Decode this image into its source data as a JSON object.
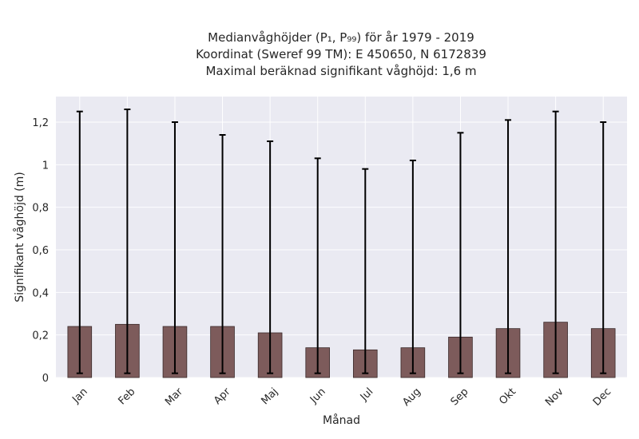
{
  "chart_data": {
    "type": "bar",
    "title_lines": [
      "Medianvåghöjder (P₁, P₉₉) för år 1979 - 2019",
      "Koordinat (Sweref 99 TM): E 450650, N 6172839",
      "Maximal beräknad signifikant våghöjd: 1,6 m"
    ],
    "xlabel": "Månad",
    "ylabel": "Signifikant våghöjd (m)",
    "categories": [
      "Jan",
      "Feb",
      "Mar",
      "Apr",
      "Maj",
      "Jun",
      "Jul",
      "Aug",
      "Sep",
      "Okt",
      "Nov",
      "Dec"
    ],
    "values": [
      0.24,
      0.25,
      0.24,
      0.24,
      0.21,
      0.14,
      0.13,
      0.14,
      0.19,
      0.23,
      0.26,
      0.23
    ],
    "p1": [
      0.02,
      0.02,
      0.02,
      0.02,
      0.02,
      0.02,
      0.02,
      0.02,
      0.02,
      0.02,
      0.02,
      0.02
    ],
    "p99": [
      1.25,
      1.26,
      1.2,
      1.14,
      1.11,
      1.03,
      0.98,
      1.02,
      1.15,
      1.21,
      1.25,
      1.2
    ],
    "ylim": [
      0,
      1.32
    ],
    "yticks": [
      0,
      0.2,
      0.4,
      0.6,
      0.8,
      1,
      1.2
    ],
    "ytick_labels": [
      "0",
      "0,2",
      "0,4",
      "0,6",
      "0,8",
      "1",
      "1,2"
    ],
    "grid": true,
    "colors": {
      "bar": "#7d5b5b",
      "bar_edge": "#3a2a2a",
      "errorbar": "#000000",
      "plot_bg": "#eaeaf2",
      "grid": "#ffffff"
    }
  }
}
